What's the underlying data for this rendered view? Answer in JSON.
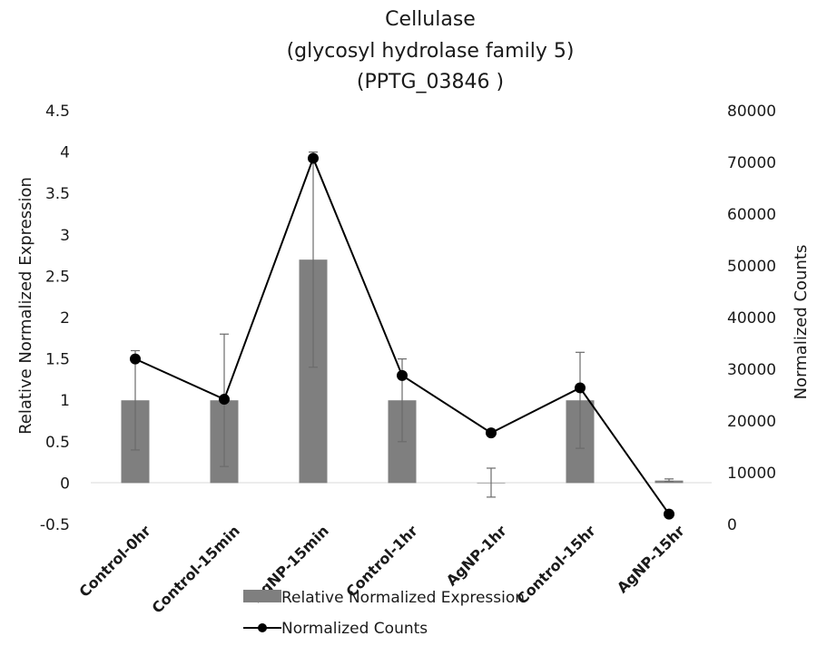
{
  "chart_data": {
    "type": "bar",
    "title": [
      "Cellulase",
      "(glycosyl hydrolase family 5)",
      "(PPTG_03846 )"
    ],
    "categories": [
      "Control-0hr",
      "Control-15min",
      "AgNP-15min",
      "Control-1hr",
      "AgNP-1hr",
      "Control-15hr",
      "AgNP-15hr"
    ],
    "ylabel": "Relative Normalized Expression",
    "y2label": "Normalized Counts",
    "ylim": [
      -0.5,
      4.5
    ],
    "yticks": [
      "4.5",
      "4",
      "3.5",
      "3",
      "2.5",
      "2",
      "1.5",
      "1",
      "0.5",
      "0",
      "-0.5"
    ],
    "y2lim": [
      0,
      80000
    ],
    "y2ticks": [
      "80000",
      "70000",
      "60000",
      "50000",
      "40000",
      "30000",
      "20000",
      "10000",
      "0"
    ],
    "series": [
      {
        "name": "Relative Normalized Expression",
        "kind": "bar",
        "axis": "left",
        "color": "#7f7f7f",
        "values": [
          1,
          1,
          2.7,
          1,
          0,
          1,
          0.03
        ],
        "error_low": [
          0.4,
          0.2,
          1.4,
          0.5,
          -0.17,
          0.42,
          0.02
        ],
        "error_high": [
          1.6,
          1.8,
          4.0,
          1.5,
          0.18,
          1.58,
          0.05
        ]
      },
      {
        "name": "Normalized Counts",
        "kind": "line",
        "axis": "right",
        "color": "#000000",
        "values": [
          32000,
          24200,
          70800,
          28800,
          17700,
          26400,
          2000
        ]
      }
    ],
    "legend_position": "bottom"
  }
}
